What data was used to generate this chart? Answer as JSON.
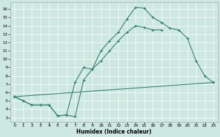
{
  "xlabel": "Humidex (Indice chaleur)",
  "bg_color": "#cce8e0",
  "line_color": "#2e7d6e",
  "xlim": [
    -0.5,
    23.5
  ],
  "ylim": [
    2.5,
    16.8
  ],
  "xticks": [
    0,
    1,
    2,
    3,
    4,
    5,
    6,
    7,
    8,
    9,
    10,
    11,
    12,
    13,
    14,
    15,
    16,
    17,
    18,
    19,
    20,
    21,
    22,
    23
  ],
  "yticks": [
    3,
    4,
    5,
    6,
    7,
    8,
    9,
    10,
    11,
    12,
    13,
    14,
    15,
    16
  ],
  "line1_x": [
    0,
    1,
    2,
    3,
    4,
    5,
    6,
    7,
    8,
    9,
    10,
    11,
    12,
    13,
    14,
    15,
    16,
    17,
    18,
    19,
    20,
    21,
    22,
    23
  ],
  "line1_y": [
    5.5,
    5.0,
    4.5,
    4.5,
    4.5,
    3.2,
    3.3,
    3.1,
    7.5,
    8.8,
    11.0,
    12.2,
    13.2,
    14.8,
    16.2,
    16.1,
    15.0,
    14.4,
    13.7,
    13.5,
    12.5,
    9.8,
    8.0,
    7.2
  ],
  "line2_x": [
    0,
    1,
    2,
    3,
    4,
    5,
    6,
    7,
    8,
    9,
    10,
    11,
    12,
    13,
    14,
    15,
    16,
    17,
    18,
    19,
    20,
    21,
    22,
    23
  ],
  "line2_y": [
    5.5,
    5.0,
    4.5,
    4.5,
    4.5,
    3.2,
    3.3,
    7.2,
    9.0,
    8.8,
    9.8,
    11.0,
    12.2,
    13.2,
    14.0,
    13.8,
    13.5,
    13.5,
    9.8,
    7.2,
    0,
    0,
    0,
    0
  ],
  "line2_end": 18,
  "line3_x": [
    0,
    23
  ],
  "line3_y": [
    5.5,
    7.2
  ]
}
